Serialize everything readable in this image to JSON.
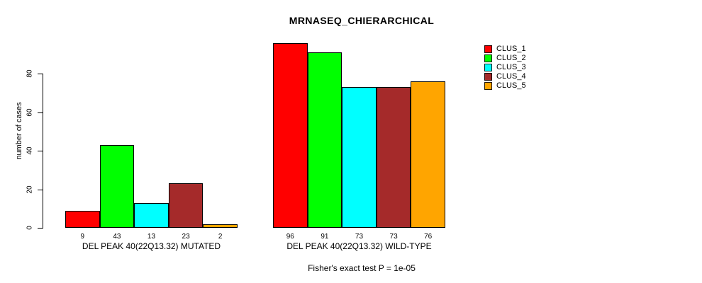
{
  "page": {
    "background": "#ffffff"
  },
  "chart_data": {
    "type": "bar",
    "title": "MRNASEQ_CHIERARCHICAL",
    "ylabel": "number of cases",
    "xlabel": "",
    "yticks": [
      0,
      20,
      40,
      60,
      80
    ],
    "ylim": [
      0,
      97
    ],
    "grid": false,
    "legend_position": "top-right",
    "bar_value_labels": true,
    "categories": [
      "DEL PEAK 40(22Q13.32) MUTATED",
      "DEL PEAK 40(22Q13.32) WILD-TYPE"
    ],
    "series": [
      {
        "name": "CLUS_1",
        "color": "#FF0000",
        "values": [
          9,
          96
        ]
      },
      {
        "name": "CLUS_2",
        "color": "#00FF00",
        "values": [
          43,
          91
        ]
      },
      {
        "name": "CLUS_3",
        "color": "#00FFFF",
        "values": [
          13,
          73
        ]
      },
      {
        "name": "CLUS_4",
        "color": "#A52A2A",
        "values": [
          23,
          73
        ]
      },
      {
        "name": "CLUS_5",
        "color": "#FFA500",
        "values": [
          2,
          76
        ]
      }
    ],
    "annotation": "Fisher's exact test P = 1e-05"
  }
}
